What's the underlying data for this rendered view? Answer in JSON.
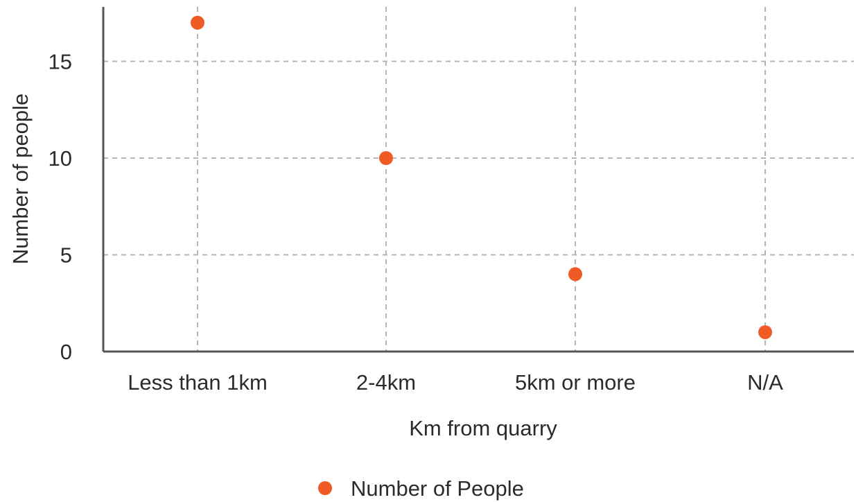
{
  "chart_data": {
    "type": "scatter",
    "title": "",
    "xlabel": "Km from quarry",
    "ylabel": "Number of people",
    "categories": [
      "Less than 1km",
      "2-4km",
      "5km or more",
      "N/A"
    ],
    "series": [
      {
        "name": "Number of People",
        "values": [
          17,
          10,
          4,
          1
        ],
        "color": "#f05a24"
      }
    ],
    "ylim": [
      0,
      17.9
    ],
    "yticks": [
      0,
      5,
      10,
      15
    ],
    "grid": true,
    "legend": "bottom-center"
  },
  "colors": {
    "axis": "#555555",
    "grid": "#b5b5b5",
    "text": "#2b2b2b"
  }
}
